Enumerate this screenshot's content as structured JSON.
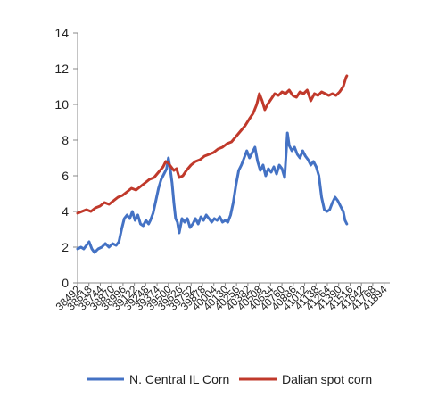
{
  "chart_data": {
    "type": "line",
    "title": "",
    "xlabel": "",
    "ylabel": "",
    "x_range": [
      38492,
      41957
    ],
    "ylim": [
      0,
      14
    ],
    "y_ticks": [
      0,
      2,
      4,
      6,
      8,
      10,
      12,
      14
    ],
    "x_tick_labels": [
      "38492",
      "38618",
      "38744",
      "38870",
      "38996",
      "39122",
      "39248",
      "39374",
      "39500",
      "39626",
      "39752",
      "39878",
      "40004",
      "40130",
      "40256",
      "40382",
      "40508",
      "40634",
      "40760",
      "40886",
      "41012",
      "41138",
      "41264",
      "41390",
      "41516",
      "41642",
      "41768",
      "41894"
    ],
    "grid": false,
    "legend_position": "bottom",
    "series": [
      {
        "name": "N. Central IL Corn",
        "color": "#4472C4",
        "points": [
          [
            38492,
            1.9
          ],
          [
            38530,
            2.0
          ],
          [
            38560,
            1.9
          ],
          [
            38590,
            2.1
          ],
          [
            38620,
            2.3
          ],
          [
            38650,
            1.9
          ],
          [
            38680,
            1.7
          ],
          [
            38720,
            1.9
          ],
          [
            38760,
            2.0
          ],
          [
            38800,
            2.2
          ],
          [
            38840,
            2.0
          ],
          [
            38880,
            2.2
          ],
          [
            38920,
            2.1
          ],
          [
            38950,
            2.3
          ],
          [
            38980,
            3.0
          ],
          [
            39010,
            3.6
          ],
          [
            39040,
            3.8
          ],
          [
            39070,
            3.6
          ],
          [
            39100,
            4.0
          ],
          [
            39130,
            3.5
          ],
          [
            39160,
            3.8
          ],
          [
            39190,
            3.3
          ],
          [
            39220,
            3.2
          ],
          [
            39250,
            3.5
          ],
          [
            39280,
            3.3
          ],
          [
            39300,
            3.5
          ],
          [
            39330,
            3.9
          ],
          [
            39360,
            4.6
          ],
          [
            39390,
            5.3
          ],
          [
            39420,
            5.8
          ],
          [
            39450,
            6.1
          ],
          [
            39480,
            6.4
          ],
          [
            39500,
            7.0
          ],
          [
            39520,
            6.4
          ],
          [
            39540,
            5.6
          ],
          [
            39560,
            4.5
          ],
          [
            39580,
            3.6
          ],
          [
            39600,
            3.4
          ],
          [
            39620,
            2.8
          ],
          [
            39650,
            3.6
          ],
          [
            39680,
            3.4
          ],
          [
            39710,
            3.6
          ],
          [
            39740,
            3.1
          ],
          [
            39770,
            3.3
          ],
          [
            39800,
            3.6
          ],
          [
            39830,
            3.3
          ],
          [
            39860,
            3.7
          ],
          [
            39890,
            3.5
          ],
          [
            39920,
            3.8
          ],
          [
            39950,
            3.6
          ],
          [
            39980,
            3.4
          ],
          [
            40010,
            3.6
          ],
          [
            40040,
            3.5
          ],
          [
            40070,
            3.7
          ],
          [
            40100,
            3.4
          ],
          [
            40130,
            3.5
          ],
          [
            40160,
            3.4
          ],
          [
            40190,
            3.8
          ],
          [
            40220,
            4.5
          ],
          [
            40250,
            5.5
          ],
          [
            40280,
            6.3
          ],
          [
            40310,
            6.6
          ],
          [
            40340,
            7.0
          ],
          [
            40370,
            7.4
          ],
          [
            40400,
            7.0
          ],
          [
            40430,
            7.3
          ],
          [
            40460,
            7.6
          ],
          [
            40490,
            6.8
          ],
          [
            40520,
            6.3
          ],
          [
            40550,
            6.6
          ],
          [
            40580,
            6.0
          ],
          [
            40610,
            6.4
          ],
          [
            40640,
            6.2
          ],
          [
            40670,
            6.5
          ],
          [
            40700,
            6.1
          ],
          [
            40730,
            6.6
          ],
          [
            40760,
            6.4
          ],
          [
            40790,
            5.9
          ],
          [
            40820,
            8.4
          ],
          [
            40840,
            7.7
          ],
          [
            40870,
            7.4
          ],
          [
            40900,
            7.6
          ],
          [
            40930,
            7.2
          ],
          [
            40960,
            7.0
          ],
          [
            40990,
            7.4
          ],
          [
            41020,
            7.1
          ],
          [
            41050,
            6.9
          ],
          [
            41080,
            6.6
          ],
          [
            41110,
            6.8
          ],
          [
            41140,
            6.5
          ],
          [
            41170,
            6.0
          ],
          [
            41200,
            4.8
          ],
          [
            41230,
            4.1
          ],
          [
            41260,
            4.0
          ],
          [
            41290,
            4.1
          ],
          [
            41320,
            4.5
          ],
          [
            41350,
            4.8
          ],
          [
            41380,
            4.6
          ],
          [
            41410,
            4.3
          ],
          [
            41440,
            4.0
          ],
          [
            41460,
            3.5
          ],
          [
            41480,
            3.3
          ]
        ]
      },
      {
        "name": "Dalian spot corn",
        "color": "#C0392B",
        "points": [
          [
            38492,
            3.9
          ],
          [
            38540,
            4.0
          ],
          [
            38590,
            4.1
          ],
          [
            38640,
            4.0
          ],
          [
            38690,
            4.2
          ],
          [
            38740,
            4.3
          ],
          [
            38790,
            4.5
          ],
          [
            38840,
            4.4
          ],
          [
            38890,
            4.6
          ],
          [
            38940,
            4.8
          ],
          [
            38990,
            4.9
          ],
          [
            39040,
            5.1
          ],
          [
            39090,
            5.3
          ],
          [
            39140,
            5.2
          ],
          [
            39190,
            5.4
          ],
          [
            39240,
            5.6
          ],
          [
            39290,
            5.8
          ],
          [
            39340,
            5.9
          ],
          [
            39390,
            6.2
          ],
          [
            39440,
            6.5
          ],
          [
            39470,
            6.8
          ],
          [
            39500,
            6.7
          ],
          [
            39530,
            6.5
          ],
          [
            39560,
            6.3
          ],
          [
            39590,
            6.4
          ],
          [
            39620,
            5.9
          ],
          [
            39660,
            6.0
          ],
          [
            39700,
            6.3
          ],
          [
            39750,
            6.6
          ],
          [
            39800,
            6.8
          ],
          [
            39850,
            6.9
          ],
          [
            39900,
            7.1
          ],
          [
            39950,
            7.2
          ],
          [
            40000,
            7.3
          ],
          [
            40050,
            7.5
          ],
          [
            40100,
            7.6
          ],
          [
            40150,
            7.8
          ],
          [
            40200,
            7.9
          ],
          [
            40250,
            8.2
          ],
          [
            40300,
            8.5
          ],
          [
            40350,
            8.8
          ],
          [
            40400,
            9.2
          ],
          [
            40440,
            9.5
          ],
          [
            40480,
            10.0
          ],
          [
            40510,
            10.6
          ],
          [
            40540,
            10.2
          ],
          [
            40570,
            9.7
          ],
          [
            40600,
            10.0
          ],
          [
            40640,
            10.3
          ],
          [
            40680,
            10.6
          ],
          [
            40720,
            10.5
          ],
          [
            40760,
            10.7
          ],
          [
            40800,
            10.6
          ],
          [
            40840,
            10.8
          ],
          [
            40880,
            10.5
          ],
          [
            40920,
            10.4
          ],
          [
            40960,
            10.7
          ],
          [
            41000,
            10.6
          ],
          [
            41040,
            10.8
          ],
          [
            41080,
            10.2
          ],
          [
            41120,
            10.6
          ],
          [
            41160,
            10.5
          ],
          [
            41200,
            10.7
          ],
          [
            41240,
            10.6
          ],
          [
            41280,
            10.5
          ],
          [
            41320,
            10.6
          ],
          [
            41360,
            10.5
          ],
          [
            41400,
            10.7
          ],
          [
            41440,
            11.0
          ],
          [
            41470,
            11.5
          ],
          [
            41480,
            11.6
          ]
        ]
      }
    ]
  }
}
